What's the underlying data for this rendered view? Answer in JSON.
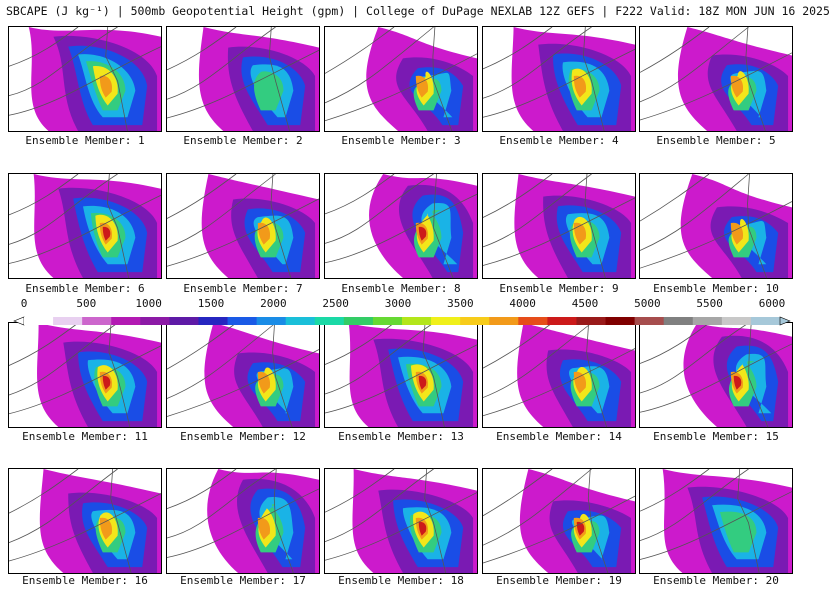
{
  "title": "SBCAPE (J kg⁻¹) | 500mb Geopotential Height (gpm) | College of DuPage NEXLAB 12Z GEFS | F222 Valid: 18Z MON JUN 16 2025",
  "member_label_prefix": "Ensemble Member: ",
  "members": [
    {
      "id": "1",
      "caption": "Ensemble Member: 1",
      "peak": "medium"
    },
    {
      "id": "2",
      "caption": "Ensemble Member: 2",
      "peak": "low"
    },
    {
      "id": "3",
      "caption": "Ensemble Member: 3",
      "peak": "medium"
    },
    {
      "id": "4",
      "caption": "Ensemble Member: 4",
      "peak": "medium"
    },
    {
      "id": "5",
      "caption": "Ensemble Member: 5",
      "peak": "medium"
    },
    {
      "id": "6",
      "caption": "Ensemble Member: 6",
      "peak": "high"
    },
    {
      "id": "7",
      "caption": "Ensemble Member: 7",
      "peak": "medium"
    },
    {
      "id": "8",
      "caption": "Ensemble Member: 8",
      "peak": "high"
    },
    {
      "id": "9",
      "caption": "Ensemble Member: 9",
      "peak": "medium"
    },
    {
      "id": "10",
      "caption": "Ensemble Member: 10",
      "peak": "medium"
    },
    {
      "id": "11",
      "caption": "Ensemble Member: 11",
      "peak": "high"
    },
    {
      "id": "12",
      "caption": "Ensemble Member: 12",
      "peak": "medium"
    },
    {
      "id": "13",
      "caption": "Ensemble Member: 13",
      "peak": "high"
    },
    {
      "id": "14",
      "caption": "Ensemble Member: 14",
      "peak": "medium"
    },
    {
      "id": "15",
      "caption": "Ensemble Member: 15",
      "peak": "high"
    },
    {
      "id": "16",
      "caption": "Ensemble Member: 16",
      "peak": "medium"
    },
    {
      "id": "17",
      "caption": "Ensemble Member: 17",
      "peak": "medium"
    },
    {
      "id": "18",
      "caption": "Ensemble Member: 18",
      "peak": "high"
    },
    {
      "id": "19",
      "caption": "Ensemble Member: 19",
      "peak": "high"
    },
    {
      "id": "20",
      "caption": "Ensemble Member: 20",
      "peak": "low"
    }
  ],
  "colorbar": {
    "tick_labels": [
      "0",
      "500",
      "1000",
      "1500",
      "2000",
      "2500",
      "3000",
      "3500",
      "4000",
      "4500",
      "5000",
      "5500",
      "6000"
    ],
    "min": 0,
    "max": 6000,
    "colors": [
      "#ffffff",
      "#e8d0f0",
      "#cc66cc",
      "#b31ab3",
      "#8c1aa6",
      "#5e1aa6",
      "#2626c0",
      "#1a5ae6",
      "#1a8ce6",
      "#1abfd9",
      "#1ad9a6",
      "#33cc66",
      "#66d933",
      "#b3e61a",
      "#f0f01a",
      "#f7cc1a",
      "#f29a1a",
      "#e64d1a",
      "#cc1a1a",
      "#991a1a",
      "#800000",
      "#a64d4d",
      "#808080",
      "#a6a6a6",
      "#c8c8c8",
      "#a6c8d9"
    ]
  },
  "colors": {
    "magenta": "#cc1acc",
    "purple": "#7a1ab3",
    "blue": "#1a4de6",
    "cyan": "#1ab3e6",
    "green": "#33cc80",
    "yellow": "#f2e61a",
    "orange": "#f29a1a",
    "red": "#cc1a1a",
    "gray": "#b3b3b3"
  }
}
